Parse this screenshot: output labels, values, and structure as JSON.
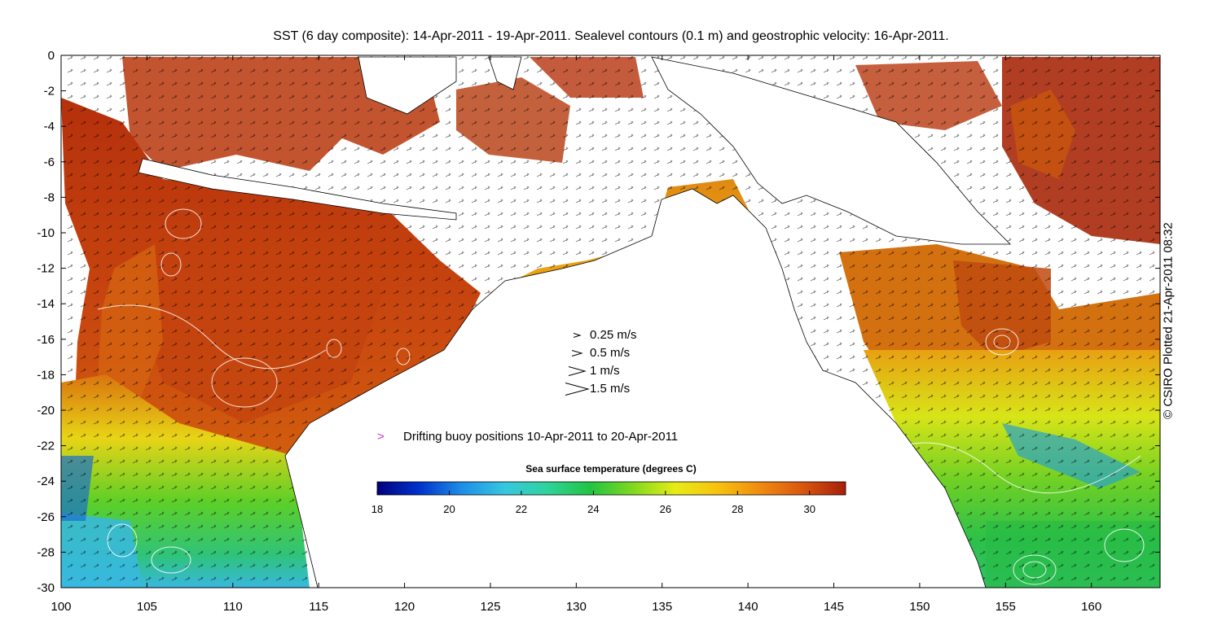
{
  "title": "SST (6 day composite): 14-Apr-2011 - 19-Apr-2011. Sealevel contours (0.1 m) and geostrophic velocity: 16-Apr-2011.",
  "credit": "© CSIRO Plotted 21-Apr-2011 08:32",
  "map": {
    "lon_range": [
      100,
      164
    ],
    "lat_range": [
      -30,
      0
    ],
    "x_ticks": [
      "100",
      "105",
      "110",
      "115",
      "120",
      "125",
      "130",
      "135",
      "140",
      "145",
      "150",
      "155",
      "160"
    ],
    "y_ticks": [
      "0",
      "-2",
      "-4",
      "-6",
      "-8",
      "-10",
      "-12",
      "-14",
      "-16",
      "-18",
      "-20",
      "-22",
      "-24",
      "-26",
      "-28",
      "-30"
    ]
  },
  "legend": {
    "velocity_scale": [
      {
        "label": "0.25 m/s",
        "speed": 0.25
      },
      {
        "label": "0.5 m/s",
        "speed": 0.5
      },
      {
        "label": "1 m/s",
        "speed": 1
      },
      {
        "label": "1.5 m/s",
        "speed": 1.5
      }
    ],
    "buoy_label": "Drifting buoy positions 10-Apr-2011 to 20-Apr-2011",
    "buoy_color": "#cc33cc"
  },
  "colorbar": {
    "title": "Sea surface temperature (degrees C)",
    "range": [
      18,
      31
    ],
    "ticks": [
      "18",
      "20",
      "22",
      "24",
      "26",
      "28",
      "30"
    ],
    "colors": [
      "#00007f",
      "#0033cc",
      "#1e8fe6",
      "#37c7e0",
      "#2fd39a",
      "#22c442",
      "#7fd81e",
      "#e6ec17",
      "#f7c20f",
      "#f08a10",
      "#d9560f",
      "#a61f0a"
    ]
  }
}
